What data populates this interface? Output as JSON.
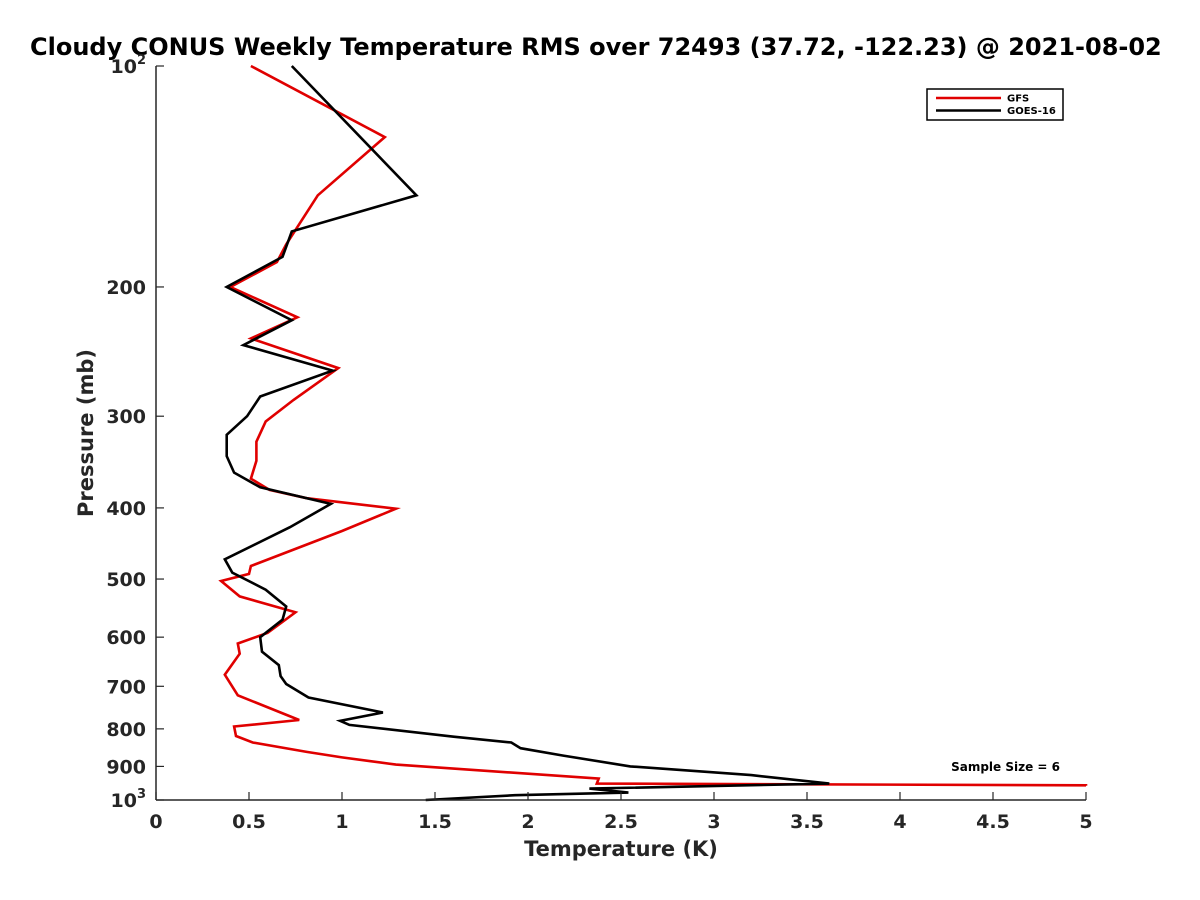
{
  "chart_data": {
    "type": "line",
    "title": "Cloudy CONUS Weekly Temperature RMS over 72493 (37.72, -122.23) @ 2021-08-02",
    "xlabel": "Temperature (K)",
    "ylabel": "Pressure (mb)",
    "xlim": [
      0,
      5
    ],
    "ylim": [
      100,
      1000
    ],
    "yscale": "log",
    "y_reversed": true,
    "grid": false,
    "legend_position": "top-right",
    "x_ticks": [
      0,
      0.5,
      1,
      1.5,
      2,
      2.5,
      3,
      3.5,
      4,
      4.5,
      5
    ],
    "x_tick_labels": [
      "0",
      "0.5",
      "1",
      "1.5",
      "2",
      "2.5",
      "3",
      "3.5",
      "4",
      "4.5",
      "5"
    ],
    "y_ticks": [
      {
        "value": 100,
        "label": "10",
        "sup": "2"
      },
      {
        "value": 200,
        "label": "200",
        "sup": ""
      },
      {
        "value": 300,
        "label": "300",
        "sup": ""
      },
      {
        "value": 400,
        "label": "400",
        "sup": ""
      },
      {
        "value": 500,
        "label": "500",
        "sup": ""
      },
      {
        "value": 600,
        "label": "600",
        "sup": ""
      },
      {
        "value": 700,
        "label": "700",
        "sup": ""
      },
      {
        "value": 800,
        "label": "800",
        "sup": ""
      },
      {
        "value": 900,
        "label": "900",
        "sup": ""
      },
      {
        "value": 1000,
        "label": "10",
        "sup": "3"
      }
    ],
    "annotation": "Sample Size = 6",
    "series": [
      {
        "name": "GFS",
        "color": "#e00000",
        "points": [
          [
            0.51,
            100
          ],
          [
            1.23,
            125
          ],
          [
            0.87,
            150
          ],
          [
            0.7,
            175
          ],
          [
            0.65,
            185
          ],
          [
            0.4,
            200
          ],
          [
            0.76,
            220
          ],
          [
            0.51,
            235
          ],
          [
            0.98,
            258
          ],
          [
            0.74,
            285
          ],
          [
            0.59,
            305
          ],
          [
            0.54,
            325
          ],
          [
            0.54,
            345
          ],
          [
            0.51,
            365
          ],
          [
            0.61,
            378
          ],
          [
            0.81,
            388
          ],
          [
            1.29,
            401
          ],
          [
            1.0,
            430
          ],
          [
            0.51,
            480
          ],
          [
            0.5,
            492
          ],
          [
            0.35,
            503
          ],
          [
            0.45,
            528
          ],
          [
            0.75,
            555
          ],
          [
            0.6,
            592
          ],
          [
            0.44,
            612
          ],
          [
            0.45,
            632
          ],
          [
            0.37,
            675
          ],
          [
            0.44,
            720
          ],
          [
            0.77,
            778
          ],
          [
            0.42,
            794
          ],
          [
            0.43,
            818
          ],
          [
            0.52,
            835
          ],
          [
            0.81,
            860
          ],
          [
            1.0,
            875
          ],
          [
            1.29,
            895
          ],
          [
            2.38,
            935
          ],
          [
            2.37,
            950
          ],
          [
            5.0,
            955
          ],
          [
            5.0,
            956
          ]
        ]
      },
      {
        "name": "GOES-16",
        "color": "#000000",
        "points": [
          [
            0.73,
            100
          ],
          [
            1.4,
            150
          ],
          [
            0.73,
            168
          ],
          [
            0.68,
            182
          ],
          [
            0.38,
            200
          ],
          [
            0.73,
            222
          ],
          [
            0.47,
            240
          ],
          [
            0.95,
            260
          ],
          [
            0.56,
            282
          ],
          [
            0.49,
            300
          ],
          [
            0.38,
            318
          ],
          [
            0.38,
            340
          ],
          [
            0.42,
            358
          ],
          [
            0.56,
            375
          ],
          [
            0.94,
            395
          ],
          [
            0.72,
            425
          ],
          [
            0.37,
            470
          ],
          [
            0.41,
            490
          ],
          [
            0.59,
            517
          ],
          [
            0.7,
            545
          ],
          [
            0.68,
            568
          ],
          [
            0.56,
            600
          ],
          [
            0.57,
            628
          ],
          [
            0.66,
            655
          ],
          [
            0.67,
            678
          ],
          [
            0.7,
            695
          ],
          [
            0.82,
            725
          ],
          [
            1.22,
            760
          ],
          [
            0.99,
            780
          ],
          [
            1.04,
            790
          ],
          [
            1.6,
            820
          ],
          [
            1.91,
            835
          ],
          [
            1.96,
            850
          ],
          [
            2.19,
            870
          ],
          [
            2.55,
            900
          ],
          [
            3.2,
            925
          ],
          [
            3.62,
            950
          ],
          [
            2.33,
            965
          ],
          [
            2.54,
            977
          ],
          [
            1.93,
            985
          ],
          [
            1.45,
            1000
          ]
        ]
      }
    ]
  }
}
